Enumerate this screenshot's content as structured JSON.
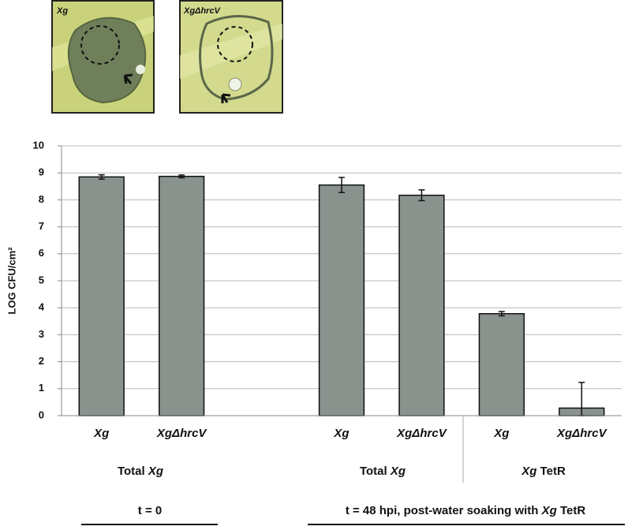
{
  "chart_data": {
    "type": "bar",
    "photo_labels": [
      "Xg",
      "XgΔhrcV"
    ],
    "ylabel": "LOG CFU/cm²",
    "categories": [
      "Xg",
      "XgΔhrcV",
      null,
      "Xg",
      "XgΔhrcV",
      "Xg",
      "XgΔhrcV"
    ],
    "values": [
      8.85,
      8.87,
      null,
      8.55,
      8.17,
      3.78,
      0.28
    ],
    "errors": [
      0.08,
      0.05,
      null,
      0.28,
      0.2,
      0.08,
      0.95
    ],
    "color": "#8a928e",
    "ylim": [
      0,
      10
    ],
    "yticks": [
      0,
      1,
      2,
      3,
      4,
      5,
      6,
      7,
      8,
      9,
      10
    ],
    "grid": true,
    "groups": [
      {
        "parts": [
          {
            "text": "Total "
          },
          {
            "text": "Xg",
            "italic": true
          }
        ]
      },
      {
        "parts": [
          {
            "text": "Total "
          },
          {
            "text": "Xg",
            "italic": true
          }
        ]
      },
      {
        "parts": [
          {
            "text": "Xg",
            "italic": true
          },
          {
            "text": " TetR"
          }
        ]
      }
    ],
    "times": [
      {
        "parts": [
          {
            "text": "t = 0"
          }
        ]
      },
      {
        "parts": [
          {
            "text": "t = 48 hpi, post-water soaking with "
          },
          {
            "text": "Xg",
            "italic": true
          },
          {
            "text": " TetR"
          }
        ]
      }
    ]
  }
}
